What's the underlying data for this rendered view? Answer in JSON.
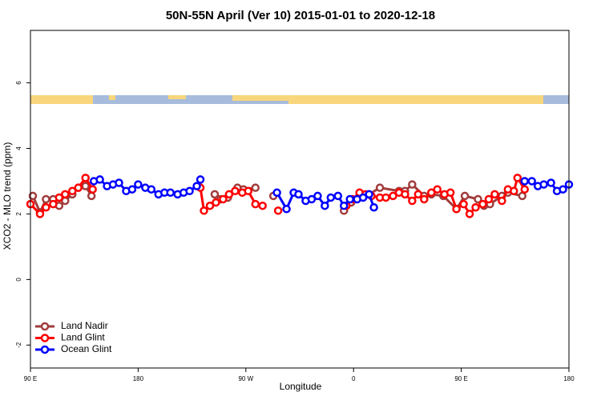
{
  "chart_data": {
    "type": "line",
    "title": "50N-55N April (Ver 10)   2015-01-01 to 2020-12-18",
    "x_label": "Longitude",
    "y_label": "XCO2 - MLO trend (ppm)",
    "xlim": [
      90,
      540
    ],
    "ylim": [
      -2.7,
      7.6
    ],
    "xticks": [
      {
        "value": 90,
        "label": "90 E"
      },
      180,
      {
        "value": 270,
        "label": "90 W"
      },
      {
        "value": 360,
        "label": "0"
      },
      {
        "value": 450,
        "label": "90 E"
      },
      {
        "value": 540,
        "label": "180"
      }
    ],
    "yticks": [
      -2,
      0,
      2,
      4,
      6
    ],
    "legend": "bottom-left",
    "series": [
      {
        "name": "Land Nadir",
        "color": "#a13c3c",
        "x": [
          92,
          98,
          103,
          109,
          114,
          119,
          125,
          130,
          136,
          141,
          null,
          244,
          249,
          255,
          263,
          268,
          278,
          null,
          293,
          null,
          352,
          358,
          373,
          382,
          398,
          403,
          409,
          419,
          425,
          435,
          446,
          453,
          464,
          469,
          474,
          484,
          489,
          501
        ],
        "values": [
          2.55,
          2.05,
          2.45,
          2.45,
          2.25,
          2.4,
          2.6,
          2.8,
          2.85,
          2.55,
          null,
          2.6,
          2.45,
          2.5,
          2.8,
          2.75,
          2.8,
          null,
          2.55,
          null,
          2.1,
          2.35,
          2.6,
          2.8,
          2.7,
          2.7,
          2.9,
          2.55,
          2.6,
          2.55,
          2.15,
          2.55,
          2.45,
          2.25,
          2.3,
          2.55,
          2.65,
          2.55
        ]
      },
      {
        "name": "Land Glint",
        "color": "#ff0000",
        "x": [
          90,
          98,
          103,
          109,
          114,
          119,
          125,
          130,
          136,
          142,
          null,
          232,
          235,
          240,
          245,
          251,
          256,
          261,
          267,
          272,
          278,
          284,
          null,
          297,
          null,
          354,
          359,
          365,
          370,
          375,
          382,
          387,
          393,
          398,
          403,
          409,
          414,
          419,
          425,
          430,
          436,
          441,
          446,
          452,
          457,
          462,
          468,
          473,
          478,
          484,
          489,
          494,
          497,
          503
        ],
        "values": [
          2.3,
          2.0,
          2.2,
          2.3,
          2.5,
          2.6,
          2.7,
          2.8,
          3.1,
          2.75,
          null,
          2.8,
          2.1,
          2.25,
          2.35,
          2.45,
          2.6,
          2.7,
          2.65,
          2.7,
          2.3,
          2.25,
          null,
          2.1,
          null,
          2.25,
          2.45,
          2.65,
          2.6,
          2.55,
          2.5,
          2.5,
          2.55,
          2.65,
          2.6,
          2.4,
          2.6,
          2.45,
          2.65,
          2.75,
          2.6,
          2.65,
          2.15,
          2.3,
          2.0,
          2.2,
          2.3,
          2.45,
          2.6,
          2.4,
          2.75,
          2.7,
          3.1,
          2.75
        ]
      },
      {
        "name": "Ocean Glint",
        "color": "#0000ff",
        "x": [
          143,
          148,
          154,
          159,
          164,
          170,
          175,
          180,
          186,
          191,
          197,
          202,
          207,
          213,
          218,
          223,
          229,
          232,
          null,
          296,
          304,
          310,
          314,
          320,
          325,
          330,
          336,
          341,
          347,
          352,
          357,
          363,
          368,
          373,
          377,
          null,
          503,
          509,
          514,
          519,
          525,
          530,
          535,
          540
        ],
        "values": [
          3.0,
          3.05,
          2.85,
          2.9,
          2.95,
          2.7,
          2.75,
          2.9,
          2.8,
          2.75,
          2.6,
          2.65,
          2.65,
          2.6,
          2.65,
          2.7,
          2.85,
          3.05,
          null,
          2.65,
          2.15,
          2.65,
          2.6,
          2.4,
          2.45,
          2.55,
          2.25,
          2.5,
          2.55,
          2.25,
          2.45,
          2.45,
          2.5,
          2.6,
          2.2,
          null,
          3.0,
          3.0,
          2.85,
          2.9,
          2.95,
          2.7,
          2.75,
          2.9
        ]
      }
    ]
  }
}
